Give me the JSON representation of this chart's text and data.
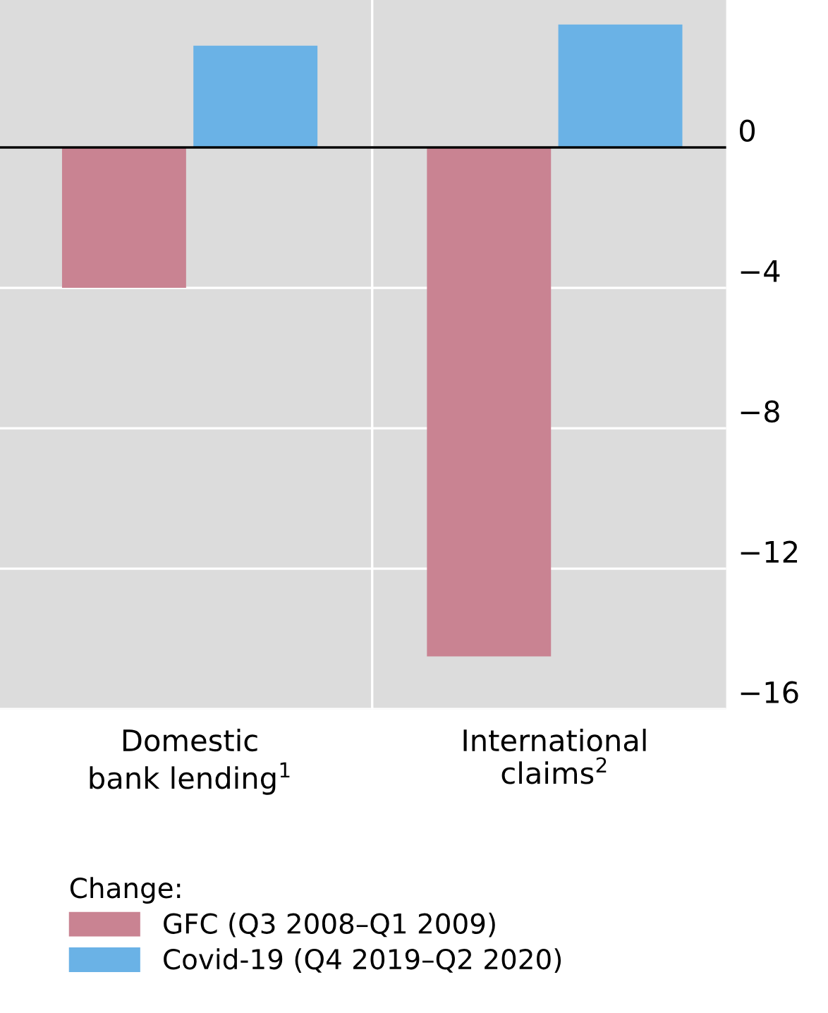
{
  "chart_data": {
    "type": "bar",
    "categories": [
      "Domestic\nbank lending$^{1}$",
      "International\nclaims$^{2}$"
    ],
    "series": [
      {
        "name": "GFC (Q3 2008–Q1 2009)",
        "color": "#c98392",
        "values": [
          -4.0,
          -14.5
        ]
      },
      {
        "name": "Covid-19 (Q4 2019–Q2 2020)",
        "color": "#6ab2e6",
        "values": [
          2.9,
          3.5
        ]
      }
    ],
    "ylim": [
      -16,
      4.2
    ],
    "yticks": [
      0,
      {
        "value": -4,
        "label": "−4"
      },
      {
        "value": -8,
        "label": "−8"
      },
      {
        "value": -12,
        "label": "−12"
      },
      {
        "value": -16,
        "label": "−16"
      }
    ],
    "ref_lines": [
      {
        "axis": "y",
        "value": 0,
        "label": null,
        "color": "#000000"
      }
    ],
    "grid": true,
    "legend": "bottom",
    "legend_title": "Change:"
  }
}
